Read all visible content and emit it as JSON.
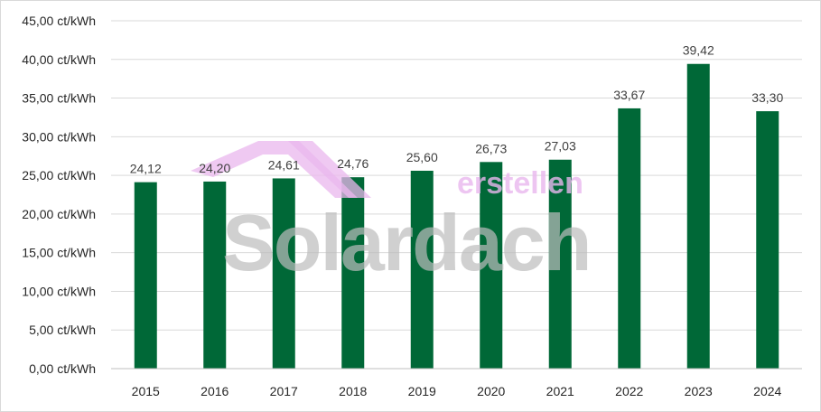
{
  "chart_data": {
    "type": "bar",
    "title": "",
    "xlabel": "",
    "ylabel": "",
    "categories": [
      "2015",
      "2016",
      "2017",
      "2018",
      "2019",
      "2020",
      "2021",
      "2022",
      "2023",
      "2024"
    ],
    "values": [
      24.12,
      24.2,
      24.61,
      24.76,
      25.6,
      26.73,
      27.03,
      33.67,
      39.42,
      33.3
    ],
    "data_labels": [
      "24,12",
      "24,20",
      "24,61",
      "24,76",
      "25,60",
      "26,73",
      "27,03",
      "33,67",
      "39,42",
      "33,30"
    ],
    "ylim": [
      0,
      45
    ],
    "yticks": [
      "0,00 ct/kWh",
      "5,00 ct/kWh",
      "10,00 ct/kWh",
      "15,00 ct/kWh",
      "20,00 ct/kWh",
      "25,00 ct/kWh",
      "30,00 ct/kWh",
      "35,00 ct/kWh",
      "40,00 ct/kWh",
      "45,00 ct/kWh"
    ],
    "grid": true,
    "legend": "none",
    "bar_color": "#006837"
  },
  "watermark": {
    "word_main": "Solardach",
    "word_sub": "erstellen",
    "main_color": "#bdbdbd",
    "sub_color": "#e9b7ee"
  }
}
